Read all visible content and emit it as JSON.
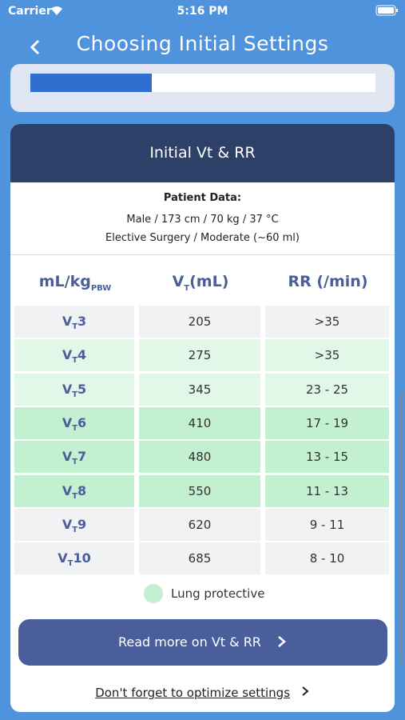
{
  "status_bar": {
    "carrier": "Carrier",
    "time": "5:16 PM"
  },
  "nav": {
    "title": "Choosing Initial Settings"
  },
  "card": {
    "title": "Initial Vt & RR",
    "patient_heading": "Patient Data:",
    "patient_lines": [
      "Male / 173 cm / 70 kg / 37 °C",
      "Elective Surgery / Moderate (~60 ml)"
    ]
  },
  "table": {
    "headers": [
      {
        "main": "mL/kg",
        "sub": "PBW"
      },
      {
        "main": "V",
        "sub": "T",
        "after": "(mL)"
      },
      {
        "main": "RR (/min)"
      }
    ],
    "rows": [
      {
        "prefix": "V",
        "sub": "T",
        "num": "3",
        "volume": "205",
        "rr": ">35",
        "color": "#f1f2f4"
      },
      {
        "prefix": "V",
        "sub": "T",
        "num": "4",
        "volume": "275",
        "rr": ">35",
        "color": "#e1f7e8"
      },
      {
        "prefix": "V",
        "sub": "T",
        "num": "5",
        "volume": "345",
        "rr": "23 - 25",
        "color": "#e1f7e8"
      },
      {
        "prefix": "V",
        "sub": "T",
        "num": "6",
        "volume": "410",
        "rr": "17 - 19",
        "color": "#c2f0d0"
      },
      {
        "prefix": "V",
        "sub": "T",
        "num": "7",
        "volume": "480",
        "rr": "13 - 15",
        "color": "#c2f0d0"
      },
      {
        "prefix": "V",
        "sub": "T",
        "num": "8",
        "volume": "550",
        "rr": "11 - 13",
        "color": "#c2f0d0"
      },
      {
        "prefix": "V",
        "sub": "T",
        "num": "9",
        "volume": "620",
        "rr": "9 - 11",
        "color": "#f1f2f4"
      },
      {
        "prefix": "V",
        "sub": "T",
        "num": "10",
        "volume": "685",
        "rr": "8 - 10",
        "color": "#f1f2f4"
      }
    ]
  },
  "legend": {
    "label": "Lung protective"
  },
  "button": {
    "label": "Read more on Vt & RR"
  },
  "link": {
    "label": "Don't forget to optimize settings"
  }
}
